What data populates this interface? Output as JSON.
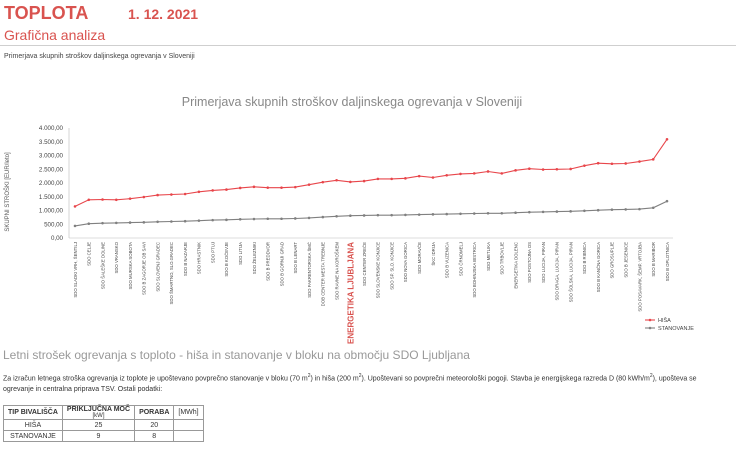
{
  "header": {
    "brand": "TOPLOTA",
    "date": "1. 12. 2021"
  },
  "subtitle": "Grafična analiza",
  "description": "Primerjava skupnih stroškov daljinskega ogrevanja v Sloveniji",
  "section2_title": "Letni strošek ogrevanja s toploto - hiša in stanovanje v bloku na območju SDO Ljubljana",
  "paragraph": {
    "p1": "Za izračun letnega stroška ogrevanja iz toplote je upoštevano povprečno stanovanje v bloku (70 m",
    "p2": ") in hiša (200 m",
    "p3": "). Upoštevani so povprečni meteorološki pogoji. Stavba je energijskega razreda D (80 kWh/m",
    "p4": "), upošteva se ogrevanje in centralna priprava TSV. Ostali podatki:",
    "sup": "2"
  },
  "table": {
    "h1": "TIP BIVALIŠČA",
    "h2": "PRIKLJUČNA MOČ",
    "h2_unit": "[kW]",
    "h3": "PORABA",
    "h4": "[MWh]",
    "rows": [
      {
        "type": "HIŠA",
        "power": "25",
        "use": "20"
      },
      {
        "type": "STANOVANJE",
        "power": "9",
        "use": "8"
      }
    ]
  },
  "colors": {
    "hisa": "#e8464b",
    "stanovanje": "#808080",
    "accent": "#d9534f",
    "highlight": "#d9534f"
  },
  "chart_data": {
    "type": "line",
    "title": "Primerjava skupnih stroškov daljinskega ogrevanja v Sloveniji",
    "ylabel": "SKUPNI STROŠKI [EUR/leto]",
    "xlabel": "",
    "ylim": [
      0,
      4000
    ],
    "yticks": [
      "0,00",
      "500,00",
      "1.000,00",
      "1.500,00",
      "2.000,00",
      "2.500,00",
      "3.000,00",
      "3.500,00",
      "4.000,00"
    ],
    "highlight_category": "ENERGETIKA LJUBLJANA",
    "legend_position": "bottom-right",
    "grid": false,
    "categories": [
      "SDO SLADKI VRH, ŠENTILJ",
      "SDO CELJE",
      "SDO ŠALEŠKE DOLINE",
      "SDO VRANSKO",
      "SDO MURSKA SOBOTA",
      "SDO B ZAGORJE OB SAVI",
      "SDO SLOVENJ GRADEC",
      "SDO ŠMARTNO, SLO.GRADEC",
      "SDO B NAZARJE",
      "SDO HRASTNIK",
      "SDO PTUJ",
      "SDO B KOČEVJE",
      "SDO LITIJA",
      "SDO ŽELEZNIKI",
      "SDO B PREDDVOR",
      "SDO B GORNJI GRAD",
      "SDO B LENART",
      "SDO FAKRENTORSKA ŠMČ",
      "DOB CENTER MESTA TREBNJE",
      "SDO RAVNE NA KOROŠKEM",
      "ENERGETIKA LJUBLJANA",
      "SDO CENTER ZREČE",
      "SDO SLOVENSKE KONJICE",
      "SDO SP. SLO. KONJICE",
      "SDO NOVA GORICA",
      "SDO MORAVČE",
      "ŠKC IDRIJA",
      "SDO B VUZENICA",
      "SDO ČRNOMELJ",
      "SDO BOHINJSKA BISTRICA",
      "SDO METLIKA",
      "SDO TRBOVLJE",
      "ENERGETIKA DOLENC",
      "SDO POSTOJNA OS",
      "SDO LUCIJA, PIRAN",
      "SDO DRAGA, LUCIJA, PIRAN",
      "SDO ŠOLSKA, LUCIJA, PIRAN",
      "SDO B RIBNICA",
      "SDO B KANČNA GORICA",
      "SDO GROSUPLJE",
      "SDO B JESENICE",
      "SDO POSAVARK, ŠEMP. VRTOJBA",
      "SDO B MARIBOR",
      "SDO B OPLOTNICA"
    ],
    "series": [
      {
        "name": "HIŠA",
        "values": [
          1150,
          1390,
          1400,
          1390,
          1430,
          1490,
          1560,
          1580,
          1600,
          1680,
          1730,
          1760,
          1820,
          1860,
          1830,
          1830,
          1850,
          1940,
          2030,
          2100,
          2040,
          2070,
          2150,
          2150,
          2170,
          2250,
          2200,
          2280,
          2330,
          2350,
          2420,
          2350,
          2460,
          2520,
          2490,
          2500,
          2510,
          2630,
          2720,
          2700,
          2710,
          2780,
          2860,
          3590
        ]
      },
      {
        "name": "STANOVANJE",
        "values": [
          440,
          520,
          540,
          550,
          560,
          570,
          590,
          600,
          610,
          630,
          650,
          660,
          680,
          690,
          700,
          700,
          710,
          730,
          760,
          790,
          810,
          820,
          830,
          830,
          840,
          850,
          860,
          870,
          880,
          890,
          900,
          900,
          920,
          940,
          950,
          960,
          970,
          990,
          1010,
          1030,
          1040,
          1050,
          1100,
          1340
        ]
      }
    ]
  }
}
